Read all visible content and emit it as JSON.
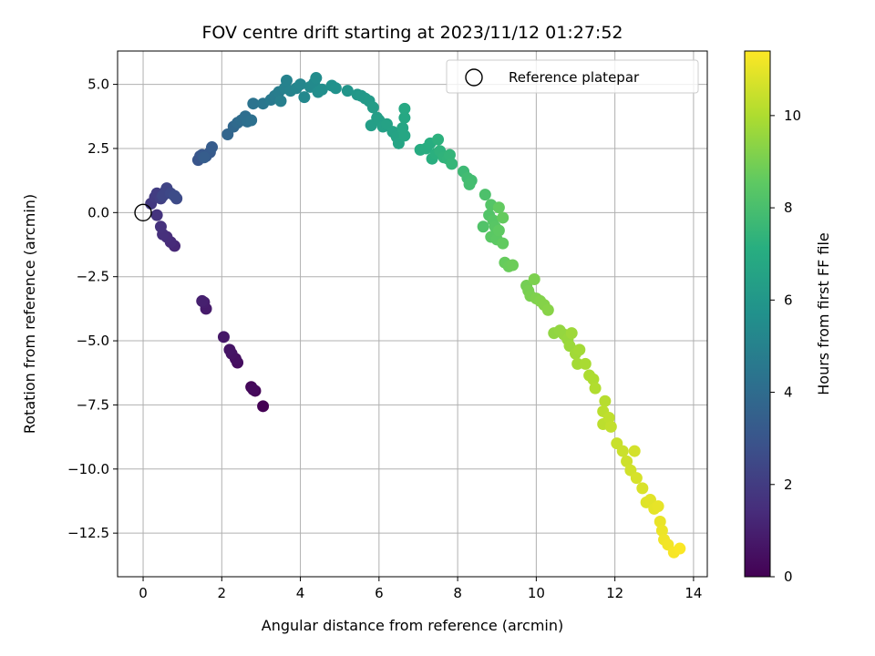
{
  "chart_data": {
    "type": "scatter",
    "title": "FOV centre drift starting at 2023/11/12 01:27:52",
    "xlabel": "Angular distance from reference (arcmin)",
    "ylabel": "Rotation from reference (arcmin)",
    "xlim": [
      -0.65,
      14.35
    ],
    "ylim": [
      -14.2,
      6.3
    ],
    "xticks": [
      0,
      2,
      4,
      6,
      8,
      10,
      12,
      14
    ],
    "yticks": [
      5.0,
      2.5,
      0.0,
      -2.5,
      -5.0,
      -7.5,
      -10.0,
      -12.5
    ],
    "xtick_labels": [
      "0",
      "2",
      "4",
      "6",
      "8",
      "10",
      "12",
      "14"
    ],
    "ytick_labels": [
      "5.0",
      "2.5",
      "0.0",
      "−2.5",
      "−5.0",
      "−7.5",
      "−10.0",
      "−12.5"
    ],
    "grid": true,
    "legend_position": "top-right",
    "colormap": "viridis",
    "colorbar": {
      "label": "Hours from first FF file",
      "range": [
        0,
        11.4
      ],
      "ticks": [
        0,
        2,
        4,
        6,
        8,
        10
      ],
      "tick_labels": [
        "0",
        "2",
        "4",
        "6",
        "8",
        "10"
      ]
    },
    "reference": {
      "name": "Reference platepar",
      "x": 0,
      "y": 0
    },
    "points": [
      [
        3.05,
        -7.55,
        0.0
      ],
      [
        2.85,
        -6.95,
        0.12
      ],
      [
        2.75,
        -6.8,
        0.2
      ],
      [
        2.8,
        -6.9,
        0.28
      ],
      [
        2.4,
        -5.85,
        0.4
      ],
      [
        2.35,
        -5.7,
        0.48
      ],
      [
        2.25,
        -5.5,
        0.55
      ],
      [
        2.2,
        -5.35,
        0.62
      ],
      [
        2.05,
        -4.85,
        0.7
      ],
      [
        1.6,
        -3.75,
        0.85
      ],
      [
        1.55,
        -3.5,
        0.92
      ],
      [
        1.5,
        -3.45,
        1.0
      ],
      [
        0.8,
        -1.3,
        1.25
      ],
      [
        0.7,
        -1.15,
        1.35
      ],
      [
        0.6,
        -0.95,
        1.45
      ],
      [
        0.5,
        -0.85,
        1.55
      ],
      [
        0.45,
        -0.55,
        1.6
      ],
      [
        0.35,
        -0.1,
        1.7
      ],
      [
        0.2,
        0.35,
        1.85
      ],
      [
        0.3,
        0.6,
        1.95
      ],
      [
        0.35,
        0.75,
        2.05
      ],
      [
        0.45,
        0.55,
        2.1
      ],
      [
        0.55,
        0.8,
        2.2
      ],
      [
        0.6,
        0.95,
        2.3
      ],
      [
        0.5,
        0.65,
        2.35
      ],
      [
        0.7,
        0.75,
        2.45
      ],
      [
        0.85,
        0.55,
        2.55
      ],
      [
        0.8,
        0.65,
        2.6
      ],
      [
        1.4,
        2.05,
        3.0
      ],
      [
        1.45,
        2.2,
        3.05
      ],
      [
        1.5,
        2.25,
        3.1
      ],
      [
        1.6,
        2.2,
        3.15
      ],
      [
        1.7,
        2.35,
        3.2
      ],
      [
        1.75,
        2.55,
        3.3
      ],
      [
        1.55,
        2.15,
        3.35
      ],
      [
        2.15,
        3.05,
        3.7
      ],
      [
        2.3,
        3.35,
        3.8
      ],
      [
        2.4,
        3.5,
        3.9
      ],
      [
        2.5,
        3.6,
        4.0
      ],
      [
        2.6,
        3.75,
        4.1
      ],
      [
        2.65,
        3.55,
        4.15
      ],
      [
        2.75,
        3.6,
        4.2
      ],
      [
        2.8,
        4.25,
        4.3
      ],
      [
        3.05,
        4.25,
        4.45
      ],
      [
        3.25,
        4.4,
        4.6
      ],
      [
        3.35,
        4.55,
        4.7
      ],
      [
        3.45,
        4.7,
        4.8
      ],
      [
        3.5,
        4.35,
        4.85
      ],
      [
        3.6,
        4.85,
        4.95
      ],
      [
        3.65,
        5.15,
        5.0
      ],
      [
        3.75,
        4.75,
        5.05
      ],
      [
        3.9,
        4.85,
        5.15
      ],
      [
        4.0,
        5.0,
        5.2
      ],
      [
        4.1,
        4.5,
        5.3
      ],
      [
        4.25,
        4.9,
        5.35
      ],
      [
        4.35,
        5.05,
        5.4
      ],
      [
        4.4,
        5.25,
        5.45
      ],
      [
        4.45,
        4.7,
        5.5
      ],
      [
        4.55,
        4.8,
        5.55
      ],
      [
        4.8,
        4.95,
        5.7
      ],
      [
        4.9,
        4.85,
        5.75
      ],
      [
        5.2,
        4.75,
        5.9
      ],
      [
        5.45,
        4.6,
        6.0
      ],
      [
        5.55,
        4.55,
        6.05
      ],
      [
        5.65,
        4.45,
        6.1
      ],
      [
        5.75,
        4.35,
        6.15
      ],
      [
        5.85,
        4.1,
        6.25
      ],
      [
        5.95,
        3.7,
        6.3
      ],
      [
        5.8,
        3.4,
        6.35
      ],
      [
        6.0,
        3.6,
        6.4
      ],
      [
        6.1,
        3.35,
        6.45
      ],
      [
        6.2,
        3.45,
        6.5
      ],
      [
        6.35,
        3.15,
        6.55
      ],
      [
        6.45,
        2.95,
        6.6
      ],
      [
        6.5,
        2.7,
        6.65
      ],
      [
        6.6,
        3.3,
        6.7
      ],
      [
        6.65,
        3.0,
        6.75
      ],
      [
        6.65,
        3.7,
        6.78
      ],
      [
        6.65,
        4.05,
        6.82
      ],
      [
        7.05,
        2.45,
        7.0
      ],
      [
        7.2,
        2.5,
        7.05
      ],
      [
        7.3,
        2.7,
        7.1
      ],
      [
        7.35,
        2.1,
        7.15
      ],
      [
        7.45,
        2.3,
        7.2
      ],
      [
        7.5,
        2.85,
        7.25
      ],
      [
        7.55,
        2.4,
        7.3
      ],
      [
        7.65,
        2.15,
        7.35
      ],
      [
        7.75,
        2.1,
        7.4
      ],
      [
        7.8,
        2.25,
        7.45
      ],
      [
        7.85,
        1.9,
        7.5
      ],
      [
        8.15,
        1.6,
        7.7
      ],
      [
        8.25,
        1.35,
        7.8
      ],
      [
        8.35,
        1.25,
        7.85
      ],
      [
        8.3,
        1.1,
        7.9
      ],
      [
        8.7,
        0.7,
        8.1
      ],
      [
        8.65,
        -0.55,
        8.2
      ],
      [
        8.8,
        -0.1,
        8.25
      ],
      [
        8.85,
        0.3,
        8.3
      ],
      [
        8.9,
        -0.3,
        8.35
      ],
      [
        8.95,
        -0.55,
        8.4
      ],
      [
        8.85,
        -0.95,
        8.45
      ],
      [
        9.0,
        -1.05,
        8.5
      ],
      [
        9.05,
        -0.7,
        8.55
      ],
      [
        9.15,
        -1.2,
        8.6
      ],
      [
        9.05,
        0.2,
        8.62
      ],
      [
        9.15,
        -0.2,
        8.65
      ],
      [
        9.2,
        -1.95,
        8.7
      ],
      [
        9.3,
        -2.1,
        8.75
      ],
      [
        9.4,
        -2.05,
        8.8
      ],
      [
        9.75,
        -2.85,
        8.95
      ],
      [
        9.8,
        -3.05,
        9.0
      ],
      [
        9.85,
        -3.25,
        9.05
      ],
      [
        9.95,
        -2.6,
        9.1
      ],
      [
        10.0,
        -3.35,
        9.15
      ],
      [
        10.1,
        -3.45,
        9.2
      ],
      [
        10.2,
        -3.6,
        9.25
      ],
      [
        10.3,
        -3.8,
        9.3
      ],
      [
        10.45,
        -4.7,
        9.45
      ],
      [
        10.6,
        -4.6,
        9.5
      ],
      [
        10.7,
        -4.75,
        9.55
      ],
      [
        10.8,
        -4.95,
        9.6
      ],
      [
        10.85,
        -5.2,
        9.65
      ],
      [
        10.9,
        -4.7,
        9.7
      ],
      [
        11.0,
        -5.5,
        9.75
      ],
      [
        11.1,
        -5.35,
        9.8
      ],
      [
        11.05,
        -5.9,
        9.82
      ],
      [
        11.25,
        -5.9,
        9.9
      ],
      [
        11.35,
        -6.35,
        9.95
      ],
      [
        11.45,
        -6.5,
        10.0
      ],
      [
        11.5,
        -6.85,
        10.05
      ],
      [
        11.75,
        -7.35,
        10.15
      ],
      [
        11.7,
        -7.75,
        10.2
      ],
      [
        11.7,
        -8.25,
        10.25
      ],
      [
        11.85,
        -8.0,
        10.3
      ],
      [
        11.9,
        -8.35,
        10.35
      ],
      [
        12.05,
        -9.0,
        10.45
      ],
      [
        12.2,
        -9.3,
        10.5
      ],
      [
        12.3,
        -9.7,
        10.55
      ],
      [
        12.4,
        -10.05,
        10.6
      ],
      [
        12.5,
        -9.3,
        10.65
      ],
      [
        12.55,
        -10.35,
        10.7
      ],
      [
        12.7,
        -10.75,
        10.75
      ],
      [
        12.8,
        -11.3,
        10.85
      ],
      [
        12.9,
        -11.2,
        10.9
      ],
      [
        13.0,
        -11.55,
        10.95
      ],
      [
        13.1,
        -11.45,
        11.0
      ],
      [
        13.15,
        -12.05,
        11.05
      ],
      [
        13.2,
        -12.4,
        11.1
      ],
      [
        13.25,
        -12.75,
        11.15
      ],
      [
        13.35,
        -12.95,
        11.2
      ],
      [
        13.5,
        -13.25,
        11.3
      ],
      [
        13.65,
        -13.1,
        11.35
      ]
    ]
  }
}
